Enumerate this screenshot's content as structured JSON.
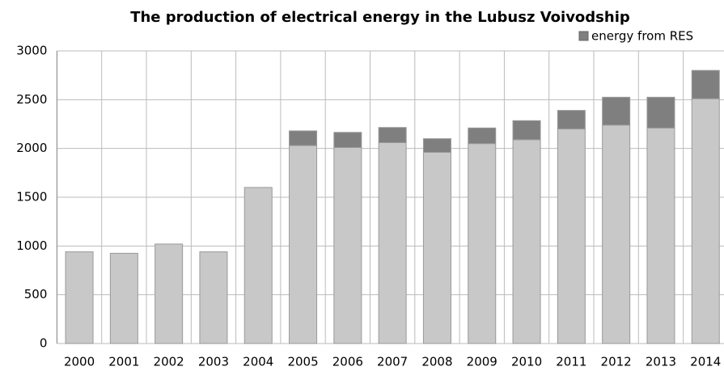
{
  "chart_data": {
    "type": "stacked_bar",
    "title": "The production of electrical energy in the Lubusz Voivodship",
    "categories": [
      "2000",
      "2001",
      "2002",
      "2003",
      "2004",
      "2005",
      "2006",
      "2007",
      "2008",
      "2009",
      "2010",
      "2011",
      "2012",
      "2013",
      "2014"
    ],
    "series": [
      {
        "color": "#c8c8c8",
        "values": [
          940,
          925,
          1020,
          940,
          1600,
          2030,
          2010,
          2060,
          1960,
          2050,
          2090,
          2200,
          2240,
          2210,
          2510
        ]
      },
      {
        "name": "energy from RES",
        "color": "#7f7f7f",
        "values": [
          0,
          0,
          0,
          0,
          0,
          150,
          155,
          155,
          140,
          160,
          195,
          190,
          285,
          315,
          290
        ]
      }
    ],
    "ylim": [
      0,
      3000
    ],
    "yticks": [
      0,
      500,
      1000,
      1500,
      2000,
      2500,
      3000
    ],
    "grid": true,
    "legend": "top-right"
  }
}
